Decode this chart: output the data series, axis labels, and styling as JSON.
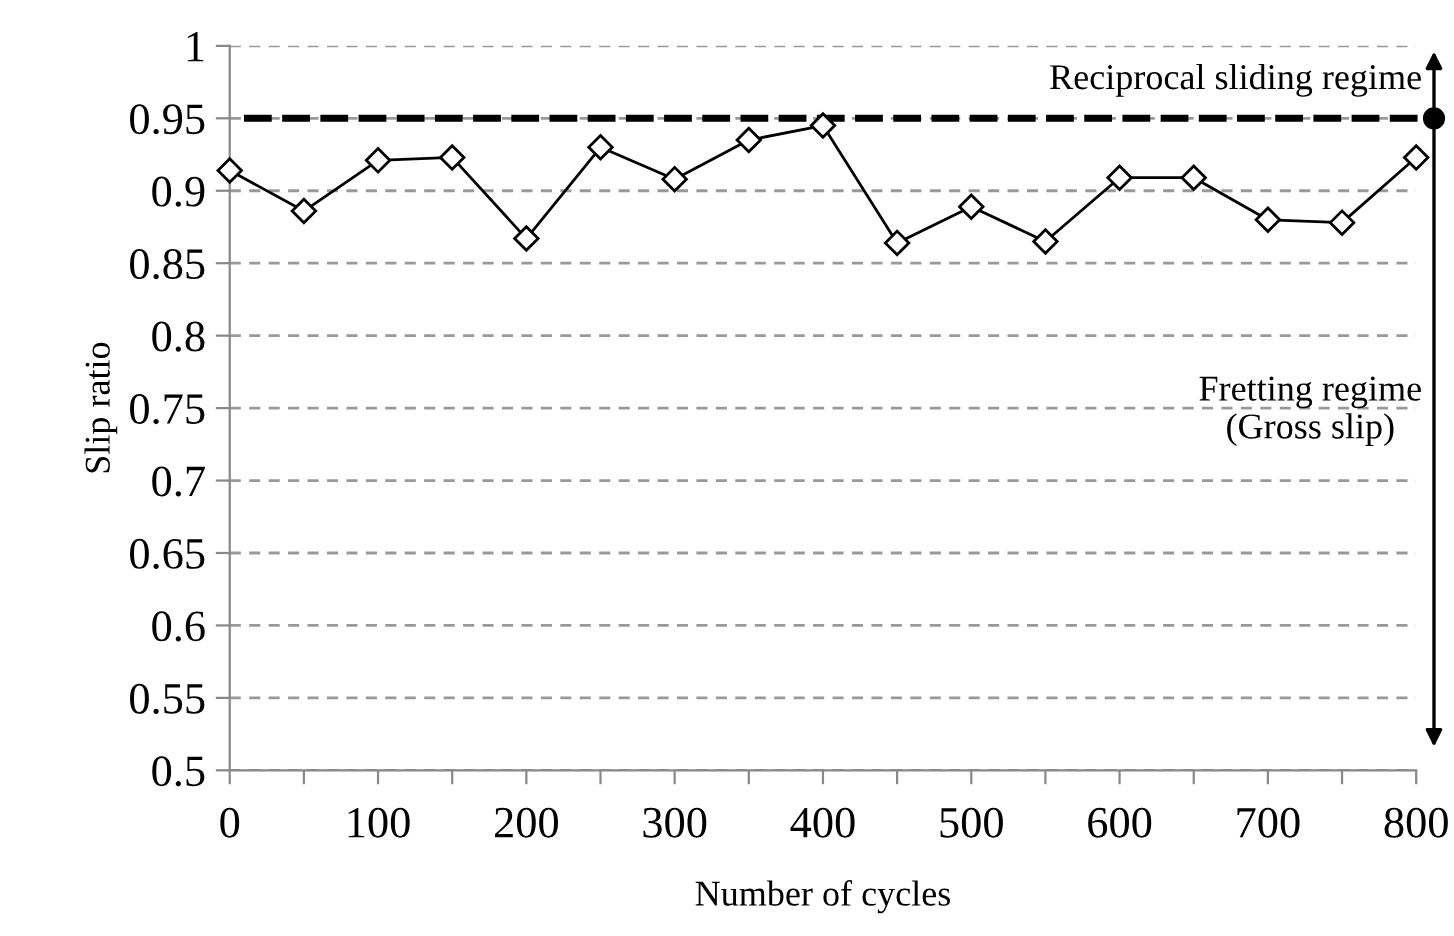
{
  "chart_data": {
    "type": "line",
    "xlabel": "Number of cycles",
    "ylabel": "Slip ratio",
    "x": [
      0,
      50,
      100,
      150,
      200,
      250,
      300,
      350,
      400,
      450,
      500,
      550,
      600,
      650,
      700,
      750,
      800
    ],
    "series": [
      {
        "color": "#000000",
        "values": [
          0.914,
          0.886,
          0.921,
          0.923,
          0.867,
          0.93,
          0.908,
          0.935,
          0.945,
          0.864,
          0.889,
          0.865,
          0.909,
          0.909,
          0.88,
          0.878,
          0.923
        ]
      }
    ],
    "marker": "diamond",
    "line_style": "solid",
    "xlim": [
      0,
      800
    ],
    "xticks": [
      0,
      {
        "value": 50,
        "label": null
      },
      100,
      {
        "value": 150,
        "label": null
      },
      200,
      {
        "value": 250,
        "label": null
      },
      300,
      {
        "value": 350,
        "label": null
      },
      400,
      {
        "value": 450,
        "label": null
      },
      500,
      {
        "value": 550,
        "label": null
      },
      600,
      {
        "value": 650,
        "label": null
      },
      700,
      {
        "value": 750,
        "label": null
      },
      800
    ],
    "ylim": [
      0.5,
      1
    ],
    "yticks": [
      0.5,
      0.55,
      0.6,
      0.65,
      0.7,
      0.75,
      0.8,
      0.85,
      0.9,
      0.95,
      1
    ],
    "grid": "y",
    "legend": false,
    "ref_lines": [
      {
        "axis": "y",
        "value": 0.95,
        "color": "#000000",
        "line_style": "dashed"
      }
    ],
    "annotations": [
      "Reciprocal sliding regime",
      "Fretting regime\n(Gross slip)"
    ]
  }
}
